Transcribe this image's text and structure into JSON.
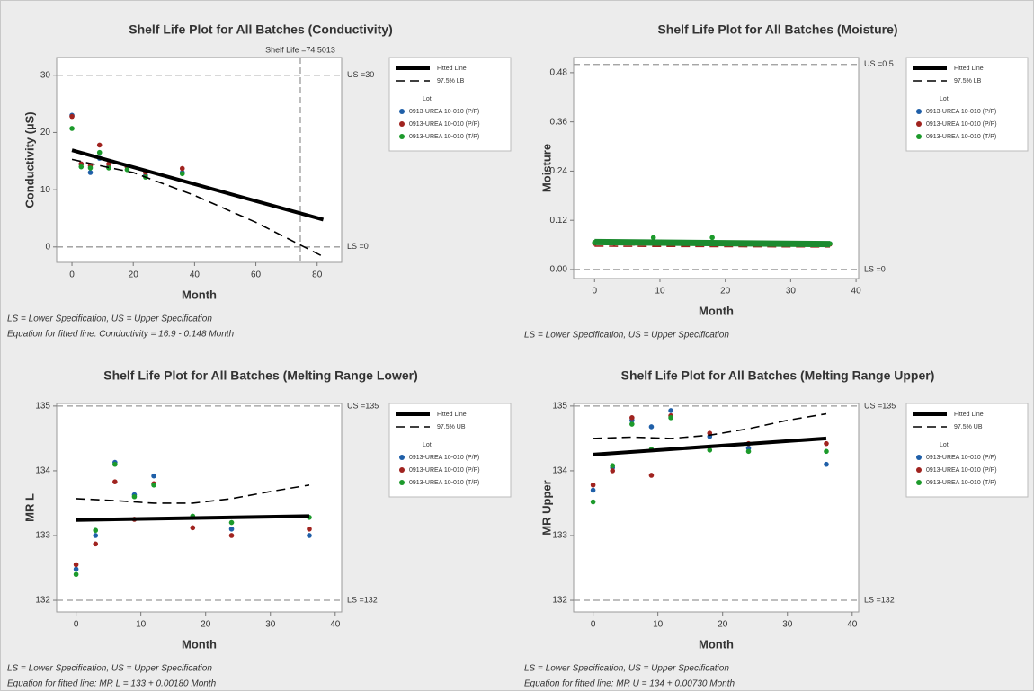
{
  "chart_data": [
    {
      "type": "scatter",
      "title": "Shelf Life Plot for All Batches (Conductivity)",
      "xlabel": "Month",
      "ylabel": "Conductivity (µS)",
      "xlim": [
        -5,
        88
      ],
      "ylim": [
        -2.7,
        33.1
      ],
      "xticks": [
        0,
        20,
        40,
        60,
        80
      ],
      "yticks": [
        0,
        10,
        20,
        30
      ],
      "grid": false,
      "x": [
        0,
        3,
        6,
        9,
        12,
        18,
        24,
        36
      ],
      "series": [
        {
          "name": "0913-UREA 10-010 (P/F)",
          "color": "#1f5fa8",
          "values": [
            23,
            14.5,
            13,
            15.5,
            14,
            14,
            12.5,
            13
          ]
        },
        {
          "name": "0913-UREA 10-010 (P/P)",
          "color": "#a0231f",
          "values": [
            22.8,
            14.5,
            14.2,
            17.8,
            14.5,
            14,
            13,
            13.7
          ]
        },
        {
          "name": "0913-UREA 10-010 (T/P)",
          "color": "#1c9a2b",
          "values": [
            20.7,
            14,
            13.8,
            16.5,
            13.8,
            13.5,
            12.2,
            12.8
          ]
        }
      ],
      "fit": {
        "x": [
          0,
          82
        ],
        "values": [
          16.9,
          4.76
        ],
        "color": "#000000"
      },
      "bound": {
        "x": [
          0,
          10,
          20,
          40,
          60,
          82
        ],
        "values": [
          15.3,
          14.1,
          13,
          9,
          4.3,
          -1.7
        ],
        "color": "#000000"
      },
      "spec_lines": [
        {
          "value": 30,
          "label": "US =30"
        },
        {
          "value": 0,
          "label": "LS =0"
        }
      ],
      "shelf_life": {
        "value": 74.5013,
        "label": "Shelf Life =74.5013"
      },
      "legend": {
        "fit": "Fitted Line",
        "bound": "97.5% LB",
        "lot": "Lot"
      },
      "notes": [
        "LS = Lower Specification, US = Upper Specification",
        "Equation for fitted line: Conductivity = 16.9 - 0.148 Month"
      ]
    },
    {
      "type": "scatter",
      "title": "Shelf Life Plot for All Batches (Moisture)",
      "xlabel": "Month",
      "ylabel": "Moisture",
      "xlim": [
        -3.2,
        40.4
      ],
      "ylim": [
        -0.022,
        0.517
      ],
      "xticks": [
        0,
        10,
        20,
        30,
        40
      ],
      "yticks": [
        {
          "value": 0,
          "label": "0.00"
        },
        0.12,
        0.24,
        0.36,
        0.48
      ],
      "grid": false,
      "x": [
        0,
        3,
        6,
        9,
        12,
        18,
        24,
        36
      ],
      "series": [
        {
          "name": "0913-UREA 10-010 (P/F)",
          "color": "#1f5fa8",
          "values": [
            0.065,
            0.065,
            0.065,
            0.065,
            0.065,
            0.065,
            0.064,
            0.063
          ]
        },
        {
          "name": "0913-UREA 10-010 (P/P)",
          "color": "#a0231f",
          "values": [
            0.064,
            0.064,
            0.064,
            0.064,
            0.064,
            0.064,
            0.063,
            0.062
          ]
        },
        {
          "name": "0913-UREA 10-010 (T/P)",
          "color": "#1c9a2b",
          "values": [
            0.066,
            0.066,
            0.066,
            0.078,
            0.066,
            0.078,
            0.065,
            0.063
          ]
        }
      ],
      "fit": {
        "x": [
          0,
          36
        ],
        "values": [
          0.067,
          0.062
        ],
        "color": "#1c8a2e"
      },
      "bound": {
        "x": [
          0,
          36
        ],
        "values": [
          0.057,
          0.055
        ],
        "color": "#a0231f"
      },
      "spec_lines": [
        {
          "value": 0.5,
          "label": "US =0.5"
        },
        {
          "value": 0,
          "label": "LS =0"
        }
      ],
      "legend": {
        "fit": "Fitted Line",
        "bound": "97.5% LB",
        "lot": "Lot"
      },
      "notes": [
        "LS = Lower Specification, US = Upper Specification"
      ]
    },
    {
      "type": "scatter",
      "title": "Shelf Life Plot for All Batches (Melting Range Lower)",
      "xlabel": "Month",
      "ylabel": "MR L",
      "xlim": [
        -3,
        41
      ],
      "ylim": [
        131.82,
        135.04
      ],
      "xticks": [
        0,
        10,
        20,
        30,
        40
      ],
      "yticks": [
        132,
        133,
        134,
        135
      ],
      "grid": false,
      "x": [
        0,
        3,
        6,
        9,
        12,
        18,
        24,
        36
      ],
      "series": [
        {
          "name": "0913-UREA 10-010 (P/F)",
          "color": "#1f5fa8",
          "values": [
            132.48,
            133.0,
            134.13,
            133.63,
            133.92,
            133.28,
            133.1,
            133.0
          ]
        },
        {
          "name": "0913-UREA 10-010 (P/P)",
          "color": "#a0231f",
          "values": [
            132.55,
            132.87,
            133.83,
            133.25,
            133.8,
            133.12,
            133.0,
            133.1
          ]
        },
        {
          "name": "0913-UREA 10-010 (T/P)",
          "color": "#1c9a2b",
          "values": [
            132.4,
            133.08,
            134.1,
            133.6,
            133.78,
            133.3,
            133.2,
            133.28
          ]
        }
      ],
      "fit": {
        "x": [
          0,
          36
        ],
        "values": [
          133.24,
          133.3
        ],
        "color": "#000000"
      },
      "bound": {
        "x": [
          0,
          6,
          12,
          18,
          24,
          30,
          36
        ],
        "values": [
          133.57,
          133.54,
          133.5,
          133.5,
          133.57,
          133.68,
          133.78
        ],
        "color": "#000000"
      },
      "spec_lines": [
        {
          "value": 135,
          "label": "US =135"
        },
        {
          "value": 132,
          "label": "LS =132"
        }
      ],
      "legend": {
        "fit": "Fitted Line",
        "bound": "97.5% UB",
        "lot": "Lot"
      },
      "notes": [
        "LS = Lower Specification, US = Upper Specification",
        "Equation for fitted line: MR L = 133 + 0.00180 Month"
      ]
    },
    {
      "type": "scatter",
      "title": "Shelf Life Plot for All Batches (Melting Range Upper)",
      "xlabel": "Month",
      "ylabel": "MR Upper",
      "xlim": [
        -3,
        41
      ],
      "ylim": [
        131.82,
        135.04
      ],
      "xticks": [
        0,
        10,
        20,
        30,
        40
      ],
      "yticks": [
        132,
        133,
        134,
        135
      ],
      "grid": false,
      "x": [
        0,
        3,
        6,
        9,
        12,
        18,
        24,
        36
      ],
      "series": [
        {
          "name": "0913-UREA 10-010 (P/F)",
          "color": "#1f5fa8",
          "values": [
            133.7,
            134.05,
            134.78,
            134.68,
            134.93,
            134.53,
            134.35,
            134.1
          ]
        },
        {
          "name": "0913-UREA 10-010 (P/P)",
          "color": "#a0231f",
          "values": [
            133.78,
            134.0,
            134.82,
            133.93,
            134.85,
            134.58,
            134.42,
            134.42
          ]
        },
        {
          "name": "0913-UREA 10-010 (T/P)",
          "color": "#1c9a2b",
          "values": [
            133.52,
            134.08,
            134.72,
            134.33,
            134.82,
            134.32,
            134.3,
            134.3
          ]
        }
      ],
      "fit": {
        "x": [
          0,
          36
        ],
        "values": [
          134.25,
          134.5
        ],
        "color": "#000000"
      },
      "bound": {
        "x": [
          0,
          6,
          12,
          18,
          24,
          30,
          36
        ],
        "values": [
          134.5,
          134.52,
          134.5,
          134.55,
          134.65,
          134.78,
          134.88
        ],
        "color": "#000000"
      },
      "spec_lines": [
        {
          "value": 135,
          "label": "US =135"
        },
        {
          "value": 132,
          "label": "LS =132"
        }
      ],
      "legend": {
        "fit": "Fitted Line",
        "bound": "97.5% UB",
        "lot": "Lot"
      },
      "notes": [
        "LS = Lower Specification, US = Upper Specification",
        "Equation for fitted line: MR U = 134 + 0.00730 Month"
      ]
    }
  ]
}
